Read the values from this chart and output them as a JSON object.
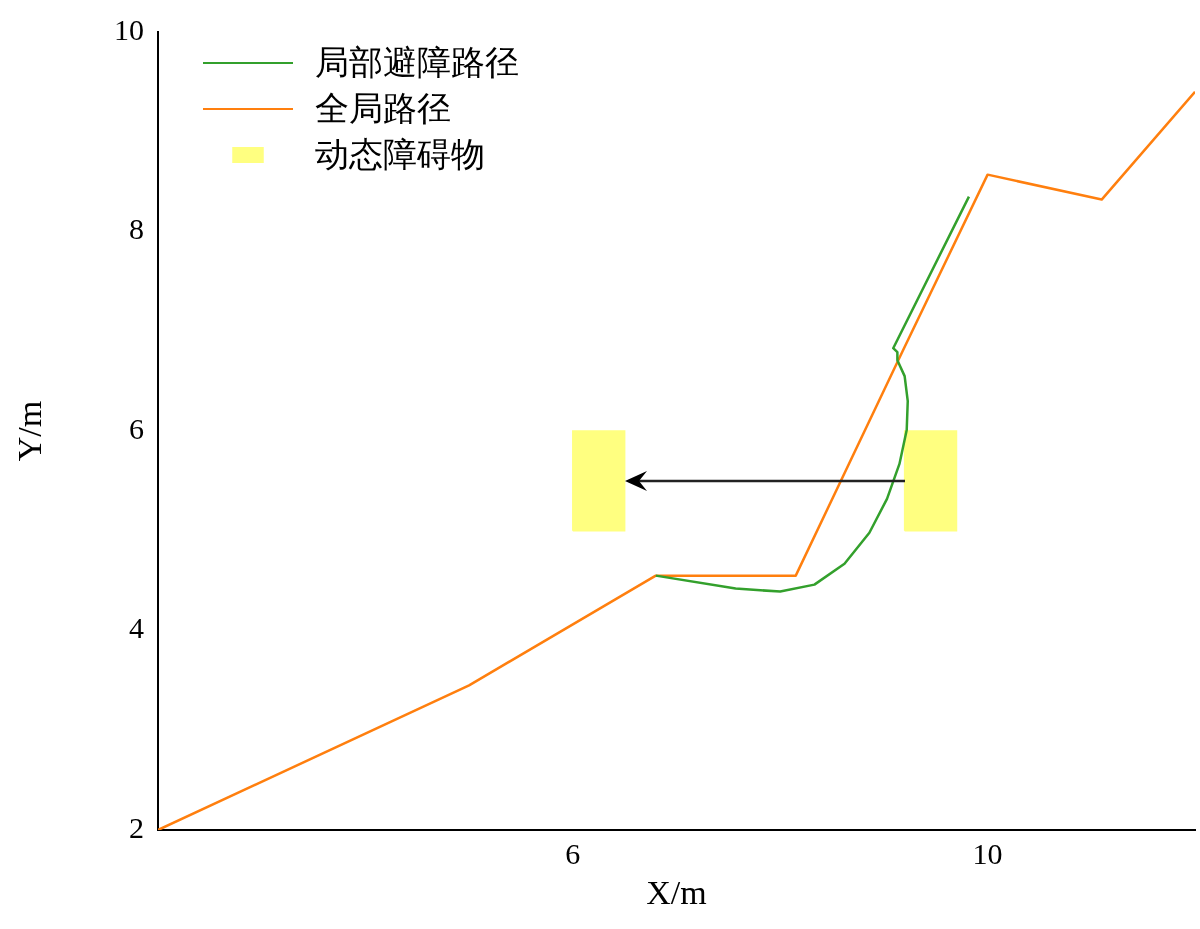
{
  "chart_data": {
    "type": "line",
    "xlabel": "X/m",
    "ylabel": "Y/m",
    "xlim": [
      2,
      12
    ],
    "xticks": [
      6,
      10
    ],
    "ylim": [
      2,
      10
    ],
    "yticks": [
      2,
      4,
      6,
      8,
      10
    ],
    "grid": false,
    "legend": "top left",
    "marker": "none",
    "line_style": "solid",
    "series": [
      {
        "name": "局部避障路径",
        "type": "line",
        "color": "#33a02c",
        "x": [
          6.8,
          7.57,
          8.0,
          8.33,
          8.62,
          8.86,
          9.03,
          9.15,
          9.22,
          9.23,
          9.2,
          9.13,
          9.13,
          9.09,
          9.82
        ],
        "values": [
          4.55,
          4.42,
          4.39,
          4.46,
          4.67,
          4.98,
          5.32,
          5.67,
          6.01,
          6.3,
          6.55,
          6.71,
          6.79,
          6.83,
          8.35
        ]
      },
      {
        "name": "全局路径",
        "type": "line",
        "color": "#ff7f0e",
        "x": [
          2,
          5,
          6.8,
          8.15,
          9.18,
          10,
          11.1,
          12
        ],
        "values": [
          2,
          3.45,
          4.55,
          4.55,
          6.8,
          8.57,
          8.32,
          9.4
        ]
      },
      {
        "name": "动态障碍物",
        "type": "area",
        "color": "#ffff80",
        "x": [
          6,
          6,
          6.5,
          6.5,
          6,
          null,
          9.2,
          9.2,
          9.7,
          9.7,
          9.2
        ],
        "values": [
          5,
          6,
          6,
          5,
          5,
          null,
          5,
          6,
          6,
          5,
          5
        ]
      }
    ]
  }
}
